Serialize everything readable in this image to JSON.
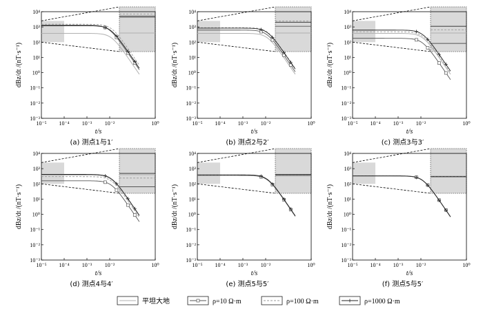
{
  "chart_data": {
    "type": "line",
    "x_scale": "log",
    "y_scale": "log",
    "xlim": [
      1e-05,
      1
    ],
    "ylim": [
      0.001,
      10000
    ],
    "xlabel": "t/s",
    "ylabel": "dBz/dt /(nT·s⁻¹)",
    "x_ticks": [
      "10⁻⁵",
      "10⁻⁴",
      "10⁻³",
      "10⁻²",
      "10⁰"
    ],
    "y_ticks": [
      "10⁴",
      "10³",
      "10²",
      "10¹",
      "10⁰",
      "10⁻¹",
      "10⁻²",
      "10⁻³"
    ],
    "legend": {
      "placement": "bottom",
      "entries": [
        {
          "label": "平坦大地",
          "style": "solid-light",
          "color": "#b0b0b0"
        },
        {
          "label": "ρ=10 Ω·m",
          "style": "square-marker",
          "color": "#555555"
        },
        {
          "label": "ρ=100 Ω·m",
          "style": "dashed",
          "color": "#9a9a9a"
        },
        {
          "label": "ρ=1000 Ω·m",
          "style": "plus-marker",
          "color": "#222222"
        }
      ]
    },
    "inset_color": "#d9d9d9",
    "inset_range_x": [
      1e-05,
      0.0001
    ],
    "panels": [
      {
        "caption": "(a) 测点1与1′",
        "early": {
          "flat": 380,
          "r10": 1300,
          "r100": 1500,
          "r1000": 1200
        },
        "late_shift": {
          "r10": 0.78,
          "r100": 1.0,
          "r1000": 0.9
        }
      },
      {
        "caption": "(b) 测点2与2′",
        "early": {
          "flat": 380,
          "r10": 620,
          "r100": 900,
          "r1000": 830
        },
        "late_shift": {
          "r10": 0.95,
          "r100": 1.0,
          "r1000": 1.0
        }
      },
      {
        "caption": "(c) 测点3与3′",
        "early": {
          "flat": 380,
          "r10": 180,
          "r100": 480,
          "r1000": 620
        },
        "late_shift": {
          "r10": 0.97,
          "r100": 1.0,
          "r1000": 1.0
        }
      },
      {
        "caption": "(d) 测点4与4′",
        "early": {
          "flat": 380,
          "r10": 160,
          "r100": 300,
          "r1000": 420
        },
        "late_shift": {
          "r10": 1.0,
          "r100": 1.0,
          "r1000": 1.0
        }
      },
      {
        "caption": "(e) 测点5与5′",
        "early": {
          "flat": 380,
          "r10": 360,
          "r100": 380,
          "r1000": 390
        },
        "late_shift": {
          "r10": 1.0,
          "r100": 1.0,
          "r1000": 1.0
        }
      },
      {
        "caption": "(f) 测点5与5′",
        "early": {
          "flat": 330,
          "r10": 340,
          "r100": 335,
          "r1000": 330
        },
        "late_shift": {
          "r10": 1.0,
          "r100": 1.0,
          "r1000": 1.0
        }
      }
    ]
  }
}
